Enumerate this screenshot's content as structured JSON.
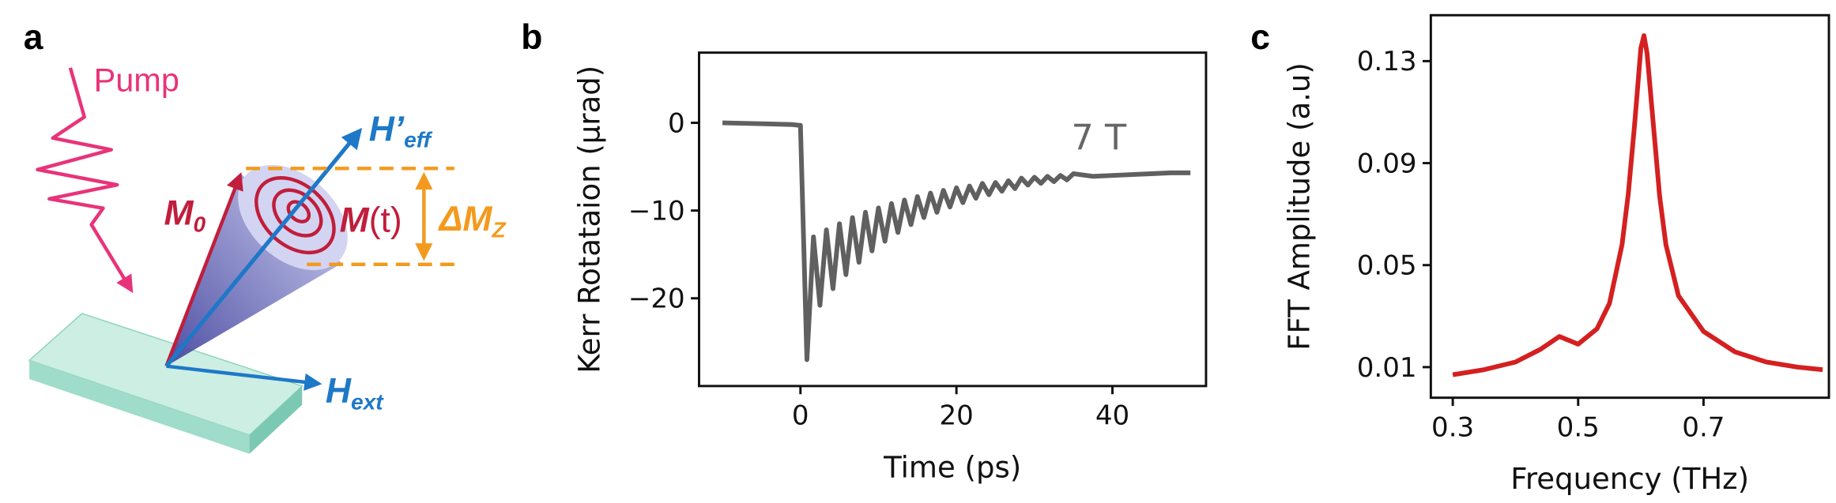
{
  "figure_labels": [
    "a",
    "b",
    "c"
  ],
  "diagram": {
    "pump": "Pump",
    "h_eff": {
      "text": "H’",
      "sub": "eff"
    },
    "m0": {
      "text": "M",
      "sub": "0"
    },
    "mt": {
      "text": "M",
      "rest": "(t)"
    },
    "delta_mz": {
      "text": "ΔM",
      "sub": "Z"
    },
    "h_ext": {
      "text": "H",
      "sub": "ext"
    }
  },
  "chart_data": [
    {
      "type": "line",
      "ylabel": "Kerr Rotataion (μrad)",
      "xlabel": "Time (ps)",
      "annotation": "7 T",
      "color": "#606060",
      "x": [
        -10,
        -5,
        -1,
        0,
        0.83,
        1.67,
        2.5,
        3.33,
        4.17,
        5,
        5.83,
        6.67,
        7.5,
        8.33,
        9.17,
        10,
        10.83,
        11.67,
        12.5,
        13.33,
        14.17,
        15,
        15.83,
        16.67,
        17.5,
        18.33,
        19.17,
        20,
        20.83,
        21.67,
        22.5,
        23.33,
        24.17,
        25,
        25.83,
        26.67,
        27.5,
        28.33,
        29.17,
        30,
        30.83,
        31.67,
        32.5,
        33.33,
        34.17,
        35,
        37.5,
        40,
        42.5,
        45,
        47.5,
        50
      ],
      "values": [
        0,
        -0.1,
        -0.2,
        -0.3,
        -27,
        -13.0,
        -20.8,
        -12.2,
        -18.9,
        -11.5,
        -17.3,
        -10.8,
        -15.9,
        -10.2,
        -14.6,
        -9.7,
        -13.5,
        -9.2,
        -12.5,
        -8.8,
        -11.6,
        -8.4,
        -10.8,
        -8.0,
        -10.2,
        -7.7,
        -9.6,
        -7.4,
        -9.1,
        -7.2,
        -8.6,
        -6.9,
        -8.2,
        -6.8,
        -7.8,
        -6.6,
        -7.5,
        -6.3,
        -7.1,
        -6.2,
        -6.9,
        -6.1,
        -6.7,
        -6.0,
        -6.5,
        -5.8,
        -6.1,
        -6.0,
        -5.9,
        -5.8,
        -5.7,
        -5.7
      ],
      "xlim": [
        -13,
        52
      ],
      "xticks": [
        0,
        20,
        40
      ],
      "ylim": [
        -30,
        8
      ],
      "yticks": [
        0,
        {
          "value": -10,
          "label": "−10"
        },
        {
          "value": -20,
          "label": "−20"
        }
      ]
    },
    {
      "type": "line",
      "ylabel": "FFT Amplitude (a.u)",
      "xlabel": "Frequency (THz)",
      "color": "#d42020",
      "x": [
        0.3,
        0.35,
        0.4,
        0.44,
        0.47,
        0.5,
        0.53,
        0.55,
        0.57,
        0.58,
        0.59,
        0.6,
        0.605,
        0.61,
        0.62,
        0.63,
        0.64,
        0.66,
        0.7,
        0.75,
        0.8,
        0.85,
        0.89
      ],
      "values": [
        0.007,
        0.009,
        0.012,
        0.017,
        0.022,
        0.019,
        0.025,
        0.035,
        0.058,
        0.078,
        0.105,
        0.135,
        0.14,
        0.133,
        0.105,
        0.077,
        0.058,
        0.038,
        0.024,
        0.016,
        0.012,
        0.01,
        0.009
      ],
      "xlim": [
        0.265,
        0.9
      ],
      "xticks": [
        0.3,
        0.5,
        0.7
      ],
      "ylim": [
        -0.002,
        0.148
      ],
      "yticks": [
        0.01,
        0.05,
        0.09,
        0.13
      ]
    }
  ]
}
